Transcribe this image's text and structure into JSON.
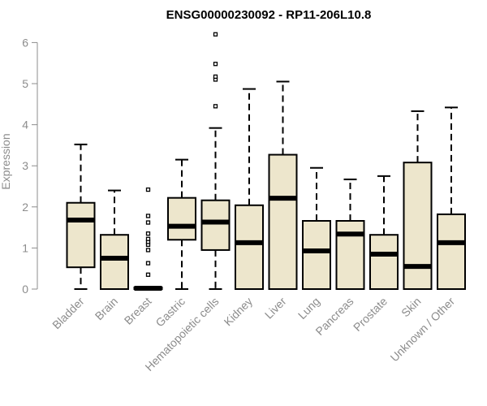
{
  "chart_data": {
    "type": "box",
    "title": "ENSG00000230092 - RP11-206L10.8",
    "ylabel": "Expression",
    "xlabel": "",
    "ylim": [
      0,
      6.2
    ],
    "yticks": [
      0,
      1,
      2,
      3,
      4,
      5,
      6
    ],
    "grid": false,
    "legend": "none",
    "colors": {
      "box_fill": "#ede6cc",
      "box_stroke": "#000000",
      "axis": "#8c8c8c"
    },
    "categories": [
      "Bladder",
      "Brain",
      "Breast",
      "Gastric",
      "Hematopoietic cells",
      "Kidney",
      "Liver",
      "Lung",
      "Pancreas",
      "Prostate",
      "Skin",
      "Unknown / Other"
    ],
    "boxes": [
      {
        "category": "Bladder",
        "min": 0,
        "q1": 0.53,
        "median": 1.68,
        "q3": 2.1,
        "max": 3.52,
        "outliers": []
      },
      {
        "category": "Brain",
        "min": 0,
        "q1": 0,
        "median": 0.75,
        "q3": 1.32,
        "max": 2.4,
        "outliers": []
      },
      {
        "category": "Breast",
        "min": 0,
        "q1": 0,
        "median": 0.02,
        "q3": 0.04,
        "max": 0.04,
        "outliers": [
          0.35,
          0.63,
          0.95,
          1.08,
          1.15,
          1.22,
          1.35,
          1.62,
          1.78,
          2.42
        ]
      },
      {
        "category": "Gastric",
        "min": 0,
        "q1": 1.2,
        "median": 1.53,
        "q3": 2.22,
        "max": 3.15,
        "outliers": []
      },
      {
        "category": "Hematopoietic cells",
        "min": 0,
        "q1": 0.95,
        "median": 1.63,
        "q3": 2.16,
        "max": 3.92,
        "outliers": [
          4.45,
          5.1,
          5.17,
          5.48,
          6.2
        ]
      },
      {
        "category": "Kidney",
        "min": 0,
        "q1": 0,
        "median": 1.13,
        "q3": 2.04,
        "max": 4.87,
        "outliers": []
      },
      {
        "category": "Liver",
        "min": 0,
        "q1": 0,
        "median": 2.21,
        "q3": 3.27,
        "max": 5.05,
        "outliers": []
      },
      {
        "category": "Lung",
        "min": 0,
        "q1": 0,
        "median": 0.93,
        "q3": 1.66,
        "max": 2.95,
        "outliers": []
      },
      {
        "category": "Pancreas",
        "min": 0,
        "q1": 0,
        "median": 1.34,
        "q3": 1.66,
        "max": 2.67,
        "outliers": []
      },
      {
        "category": "Prostate",
        "min": 0,
        "q1": 0,
        "median": 0.85,
        "q3": 1.32,
        "max": 2.75,
        "outliers": []
      },
      {
        "category": "Skin",
        "min": 0,
        "q1": 0,
        "median": 0.55,
        "q3": 3.08,
        "max": 4.33,
        "outliers": []
      },
      {
        "category": "Unknown / Other",
        "min": 0,
        "q1": 0,
        "median": 1.13,
        "q3": 1.82,
        "max": 4.42,
        "outliers": []
      }
    ]
  }
}
